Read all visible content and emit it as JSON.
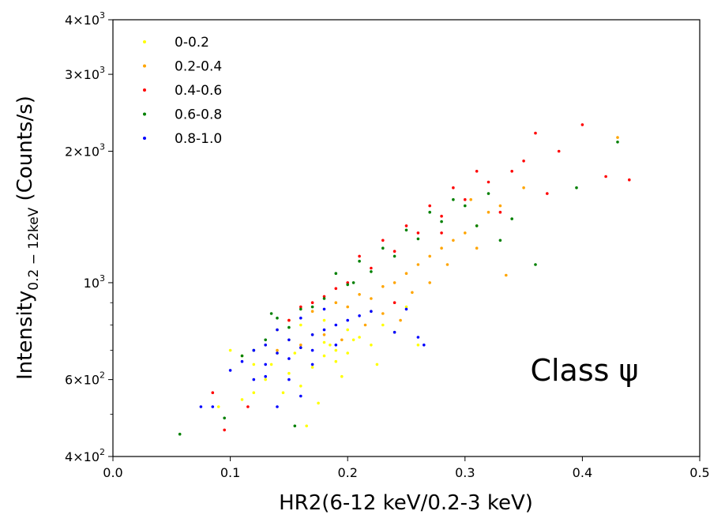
{
  "chart_data": {
    "type": "scatter",
    "title": "",
    "xlabel": "HR2(6-12 keV/0.2-3 keV)",
    "ylabel": "Intensity",
    "ylabel_subscript": "0.2 − 12keV",
    "ylabel_unit": " (Counts/s)",
    "xlim": [
      0.0,
      0.5
    ],
    "ylim": [
      400,
      4000
    ],
    "yscale": "log",
    "x_ticks": [
      "0.0",
      "0.1",
      "0.2",
      "0.3",
      "0.4",
      "0.5"
    ],
    "y_ticks": [
      {
        "value": 400,
        "mant": "4",
        "exp": "2"
      },
      {
        "value": 600,
        "mant": "6",
        "exp": "2"
      },
      {
        "value": 1000,
        "mant": "",
        "exp": "3"
      },
      {
        "value": 2000,
        "mant": "2",
        "exp": "3"
      },
      {
        "value": 3000,
        "mant": "3",
        "exp": "3"
      },
      {
        "value": 4000,
        "mant": "4",
        "exp": "3"
      }
    ],
    "legend_position": "top-left",
    "annotation": "Class ψ",
    "series": [
      {
        "name": "0-0.2",
        "color": "#ffff00",
        "points": [
          [
            0.1,
            700
          ],
          [
            0.11,
            680
          ],
          [
            0.12,
            650
          ],
          [
            0.13,
            720
          ],
          [
            0.14,
            690
          ],
          [
            0.15,
            740
          ],
          [
            0.16,
            710
          ],
          [
            0.17,
            760
          ],
          [
            0.18,
            730
          ],
          [
            0.19,
            700
          ],
          [
            0.2,
            780
          ],
          [
            0.21,
            750
          ],
          [
            0.22,
            720
          ],
          [
            0.23,
            800
          ],
          [
            0.24,
            770
          ],
          [
            0.13,
            600
          ],
          [
            0.15,
            620
          ],
          [
            0.17,
            640
          ],
          [
            0.19,
            660
          ],
          [
            0.14,
            780
          ],
          [
            0.16,
            800
          ],
          [
            0.18,
            820
          ],
          [
            0.12,
            560
          ],
          [
            0.16,
            580
          ],
          [
            0.2,
            690
          ],
          [
            0.22,
            860
          ],
          [
            0.25,
            880
          ],
          [
            0.11,
            540
          ],
          [
            0.09,
            520
          ],
          [
            0.18,
            680
          ],
          [
            0.165,
            470
          ],
          [
            0.175,
            530
          ],
          [
            0.135,
            650
          ],
          [
            0.155,
            690
          ],
          [
            0.185,
            720
          ],
          [
            0.205,
            740
          ],
          [
            0.145,
            560
          ],
          [
            0.195,
            610
          ],
          [
            0.225,
            650
          ],
          [
            0.26,
            720
          ]
        ]
      },
      {
        "name": "0.2-0.4",
        "color": "#ffa500",
        "points": [
          [
            0.15,
            820
          ],
          [
            0.17,
            860
          ],
          [
            0.19,
            900
          ],
          [
            0.21,
            940
          ],
          [
            0.23,
            980
          ],
          [
            0.25,
            1050
          ],
          [
            0.27,
            1150
          ],
          [
            0.29,
            1250
          ],
          [
            0.31,
            1350
          ],
          [
            0.33,
            1500
          ],
          [
            0.2,
            880
          ],
          [
            0.22,
            920
          ],
          [
            0.24,
            1000
          ],
          [
            0.26,
            1100
          ],
          [
            0.28,
            1200
          ],
          [
            0.3,
            1300
          ],
          [
            0.32,
            1450
          ],
          [
            0.18,
            760
          ],
          [
            0.16,
            720
          ],
          [
            0.14,
            700
          ],
          [
            0.23,
            850
          ],
          [
            0.27,
            1000
          ],
          [
            0.31,
            1200
          ],
          [
            0.35,
            1650
          ],
          [
            0.43,
            2150
          ],
          [
            0.335,
            1040
          ],
          [
            0.245,
            820
          ],
          [
            0.285,
            1100
          ],
          [
            0.215,
            800
          ],
          [
            0.195,
            740
          ],
          [
            0.255,
            950
          ],
          [
            0.305,
            1550
          ]
        ]
      },
      {
        "name": "0.4-0.6",
        "color": "#ff0000",
        "points": [
          [
            0.16,
            880
          ],
          [
            0.18,
            930
          ],
          [
            0.2,
            1000
          ],
          [
            0.22,
            1080
          ],
          [
            0.24,
            1180
          ],
          [
            0.26,
            1300
          ],
          [
            0.28,
            1420
          ],
          [
            0.3,
            1550
          ],
          [
            0.32,
            1700
          ],
          [
            0.34,
            1800
          ],
          [
            0.21,
            1150
          ],
          [
            0.23,
            1250
          ],
          [
            0.25,
            1350
          ],
          [
            0.27,
            1500
          ],
          [
            0.29,
            1650
          ],
          [
            0.31,
            1800
          ],
          [
            0.19,
            970
          ],
          [
            0.17,
            900
          ],
          [
            0.15,
            820
          ],
          [
            0.36,
            2200
          ],
          [
            0.38,
            2000
          ],
          [
            0.4,
            2300
          ],
          [
            0.44,
            1720
          ],
          [
            0.42,
            1750
          ],
          [
            0.37,
            1600
          ],
          [
            0.085,
            560
          ],
          [
            0.095,
            460
          ],
          [
            0.115,
            520
          ],
          [
            0.33,
            1450
          ],
          [
            0.35,
            1900
          ],
          [
            0.28,
            1300
          ],
          [
            0.24,
            900
          ]
        ]
      },
      {
        "name": "0.6-0.8",
        "color": "#008000",
        "points": [
          [
            0.14,
            830
          ],
          [
            0.16,
            870
          ],
          [
            0.18,
            920
          ],
          [
            0.2,
            990
          ],
          [
            0.22,
            1060
          ],
          [
            0.24,
            1150
          ],
          [
            0.26,
            1260
          ],
          [
            0.28,
            1380
          ],
          [
            0.3,
            1500
          ],
          [
            0.32,
            1600
          ],
          [
            0.19,
            1050
          ],
          [
            0.21,
            1120
          ],
          [
            0.23,
            1200
          ],
          [
            0.25,
            1320
          ],
          [
            0.27,
            1450
          ],
          [
            0.29,
            1550
          ],
          [
            0.17,
            880
          ],
          [
            0.15,
            790
          ],
          [
            0.13,
            740
          ],
          [
            0.12,
            700
          ],
          [
            0.057,
            450
          ],
          [
            0.095,
            490
          ],
          [
            0.36,
            1100
          ],
          [
            0.43,
            2100
          ],
          [
            0.395,
            1650
          ],
          [
            0.155,
            470
          ],
          [
            0.135,
            850
          ],
          [
            0.205,
            1000
          ],
          [
            0.31,
            1350
          ],
          [
            0.33,
            1250
          ],
          [
            0.11,
            680
          ],
          [
            0.34,
            1400
          ]
        ]
      },
      {
        "name": "0.8-1.0",
        "color": "#0000ff",
        "points": [
          [
            0.12,
            700
          ],
          [
            0.13,
            720
          ],
          [
            0.14,
            690
          ],
          [
            0.15,
            740
          ],
          [
            0.16,
            710
          ],
          [
            0.17,
            760
          ],
          [
            0.18,
            780
          ],
          [
            0.19,
            800
          ],
          [
            0.2,
            820
          ],
          [
            0.21,
            840
          ],
          [
            0.22,
            860
          ],
          [
            0.13,
            650
          ],
          [
            0.15,
            670
          ],
          [
            0.17,
            700
          ],
          [
            0.19,
            720
          ],
          [
            0.14,
            780
          ],
          [
            0.16,
            830
          ],
          [
            0.18,
            870
          ],
          [
            0.12,
            600
          ],
          [
            0.11,
            660
          ],
          [
            0.1,
            630
          ],
          [
            0.075,
            520
          ],
          [
            0.085,
            520
          ],
          [
            0.14,
            520
          ],
          [
            0.16,
            550
          ],
          [
            0.25,
            870
          ],
          [
            0.26,
            750
          ],
          [
            0.265,
            720
          ],
          [
            0.24,
            770
          ],
          [
            0.17,
            650
          ],
          [
            0.15,
            600
          ],
          [
            0.13,
            610
          ]
        ]
      }
    ]
  }
}
